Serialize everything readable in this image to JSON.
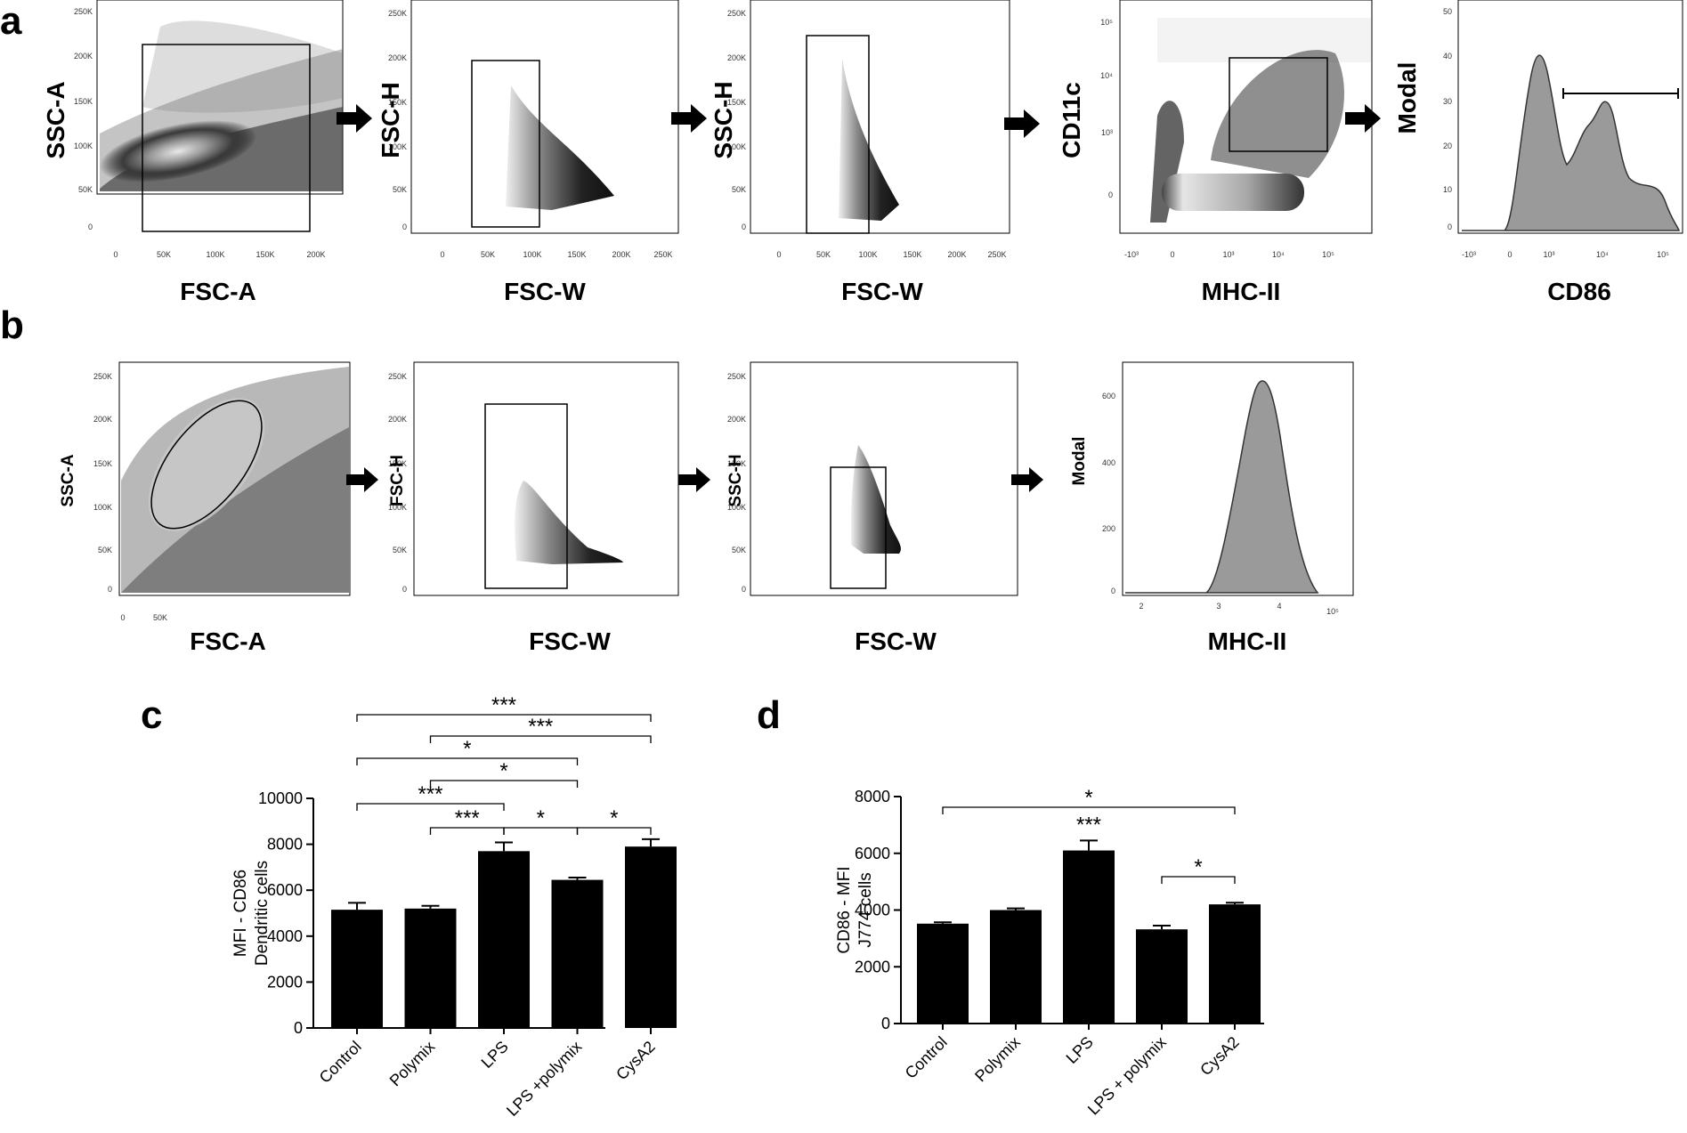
{
  "panel_labels": {
    "a": "a",
    "b": "b",
    "c": "c",
    "d": "d"
  },
  "colors": {
    "bar": "#000000",
    "density_core": "#d4d4d4",
    "density_mid": "#6a6a6a",
    "histogram_fill": "#9a9a9a"
  },
  "row_a": {
    "p1": {
      "ylabel": "SSC-A",
      "xlabel": "FSC-A",
      "yticks": [
        "250K",
        "200K",
        "150K",
        "100K",
        "50K",
        "0"
      ],
      "xticks": [
        "0",
        "50K",
        "100K",
        "150K",
        "200K"
      ]
    },
    "p2": {
      "ylabel": "FSC-H",
      "xlabel": "FSC-W",
      "yticks": [
        "250K",
        "200K",
        "150K",
        "100K",
        "50K",
        "0"
      ],
      "xticks": [
        "0",
        "50K",
        "100K",
        "150K",
        "200K",
        "250K"
      ]
    },
    "p3": {
      "ylabel": "SSC-H",
      "xlabel": "FSC-W",
      "yticks": [
        "250K",
        "200K",
        "150K",
        "100K",
        "50K",
        "0"
      ],
      "xticks": [
        "0",
        "50K",
        "100K",
        "150K",
        "200K",
        "250K"
      ]
    },
    "p4": {
      "ylabel": "CD11c",
      "xlabel": "MHC-II",
      "yticks": [
        "10⁵",
        "10⁴",
        "10³",
        "0"
      ],
      "xticks": [
        "-10³",
        "0",
        "10³",
        "10⁴",
        "10⁵"
      ]
    },
    "p5": {
      "ylabel": "Modal",
      "xlabel": "CD86",
      "yticks": [
        "50",
        "40",
        "30",
        "20",
        "10",
        "0"
      ],
      "xticks": [
        "-10³",
        "0",
        "10³",
        "10⁴",
        "10⁵"
      ]
    }
  },
  "row_b": {
    "p1": {
      "ylabel": "SSC-A",
      "xlabel": "FSC-A",
      "yticks": [
        "250K",
        "200K",
        "150K",
        "100K",
        "50K",
        "0"
      ],
      "xticks": [
        "0",
        "50K"
      ]
    },
    "p2": {
      "ylabel": "FSC-H",
      "xlabel": "FSC-W",
      "yticks": [
        "250K",
        "200K",
        "150K",
        "100K",
        "50K",
        "0"
      ]
    },
    "p3": {
      "ylabel": "SSC-H",
      "xlabel": "FSC-W",
      "yticks": [
        "250K",
        "200K",
        "150K",
        "100K",
        "50K",
        "0"
      ]
    },
    "p4": {
      "ylabel": "Modal",
      "xlabel": "MHC-II",
      "yticks": [
        "600",
        "400",
        "200",
        "0"
      ],
      "xticks": [
        "2",
        "3",
        "4",
        "10⁵"
      ]
    }
  },
  "chart_data": [
    {
      "type": "bar",
      "id": "c",
      "categories": [
        "Control",
        "Polymix",
        "LPS",
        "LPS +polymix",
        "CysA2"
      ],
      "values": [
        5150,
        5200,
        7700,
        6450,
        7900
      ],
      "errors": [
        300,
        120,
        380,
        100,
        320
      ],
      "ylabel": "MFI - CD86\nDendritic cells",
      "ylabel_lines": [
        "MFI - CD86",
        "Dendritic cells"
      ],
      "ylim": [
        0,
        10000
      ],
      "yticks": [
        0,
        2000,
        4000,
        6000,
        8000,
        10000
      ],
      "significance": [
        {
          "from": 0,
          "to": 4,
          "label": "***"
        },
        {
          "from": 1,
          "to": 4,
          "label": "***"
        },
        {
          "from": 0,
          "to": 3,
          "label": "*"
        },
        {
          "from": 1,
          "to": 3,
          "label": "*"
        },
        {
          "from": 0,
          "to": 2,
          "label": "***"
        },
        {
          "from": 1,
          "to": 2,
          "label": "***"
        },
        {
          "from": 2,
          "to": 3,
          "label": "*"
        },
        {
          "from": 3,
          "to": 4,
          "label": "*"
        }
      ]
    },
    {
      "type": "bar",
      "id": "d",
      "categories": [
        "Control",
        "Polymix",
        "LPS",
        "LPS + polymix",
        "CysA2"
      ],
      "values": [
        3520,
        4000,
        6100,
        3320,
        4200
      ],
      "errors": [
        50,
        60,
        350,
        130,
        60
      ],
      "ylabel": "CD86 - MFI\nJ774 cells",
      "ylabel_lines": [
        "CD86 - MFI",
        "J774 cells"
      ],
      "ylim": [
        0,
        8000
      ],
      "yticks": [
        0,
        2000,
        4000,
        6000,
        8000
      ],
      "significance": [
        {
          "from": 0,
          "to": 4,
          "label": "*"
        },
        {
          "from": 3,
          "to": 4,
          "label": "*"
        }
      ],
      "single_labels": [
        {
          "index": 2,
          "label": "***"
        }
      ]
    }
  ]
}
